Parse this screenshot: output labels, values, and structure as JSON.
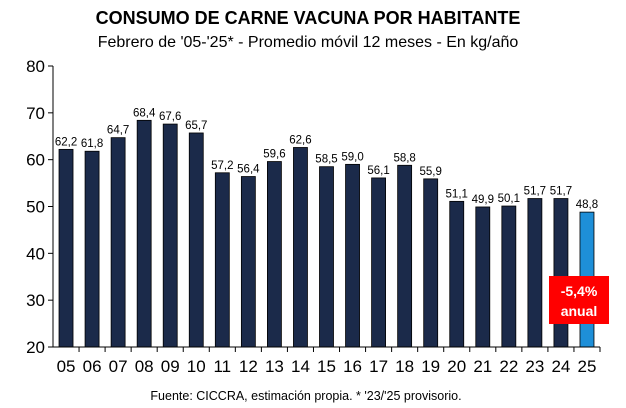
{
  "chart_data": {
    "type": "bar",
    "title": "CONSUMO DE CARNE VACUNA POR HABITANTE",
    "subtitle": "Febrero de '05-'25* - Promedio móvil 12 meses -  En kg/año",
    "categories": [
      "05",
      "06",
      "07",
      "08",
      "09",
      "10",
      "11",
      "12",
      "13",
      "14",
      "15",
      "16",
      "17",
      "18",
      "19",
      "20",
      "21",
      "22",
      "23",
      "24",
      "25"
    ],
    "values": [
      62.2,
      61.8,
      64.7,
      68.4,
      67.6,
      65.7,
      57.2,
      56.4,
      59.6,
      62.6,
      58.5,
      59.0,
      56.1,
      58.8,
      55.9,
      51.1,
      49.9,
      50.1,
      51.7,
      51.7,
      48.8
    ],
    "data_labels": [
      "62,2",
      "61,8",
      "64,7",
      "68,4",
      "67,6",
      "65,7",
      "57,2",
      "56,4",
      "59,6",
      "62,6",
      "58,5",
      "59,0",
      "56,1",
      "58,8",
      "55,9",
      "51,1",
      "49,9",
      "50,1",
      "51,7",
      "51,7",
      "48,8"
    ],
    "ylim": [
      20,
      80
    ],
    "yticks": [
      20,
      30,
      40,
      50,
      60,
      70,
      80
    ],
    "highlight_index": 20,
    "colors": {
      "bar": "#1b2a4a",
      "highlight": "#1e8fd8",
      "badge": "#ff0000"
    },
    "annotation": {
      "line1": "-5,4%",
      "line2": "anual"
    },
    "source": "Fuente: CICCRA, estimación propia. * '23/'25 provisorio.",
    "grid": false,
    "legend": "none"
  }
}
